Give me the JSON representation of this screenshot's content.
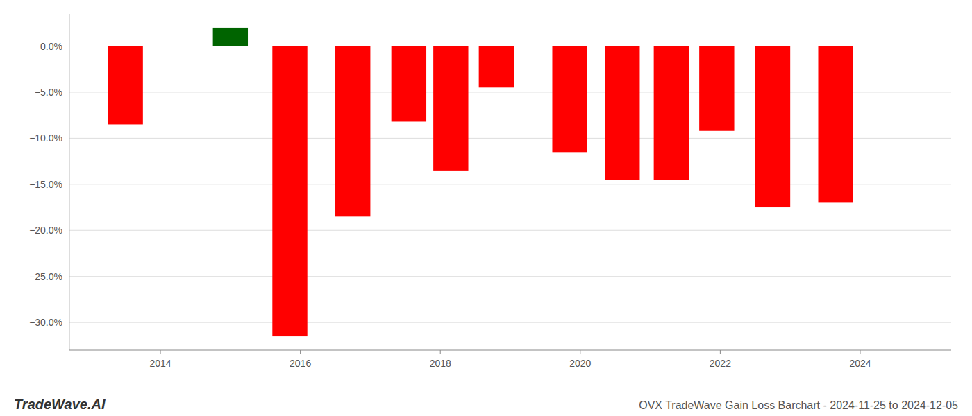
{
  "chart_data": {
    "type": "bar",
    "title": "OVX TradeWave Gain Loss Barchart - 2024-11-25 to 2024-12-05",
    "annotations": [
      "TradeWave.AI"
    ],
    "x": [
      2013.5,
      2015.0,
      2015.85,
      2016.75,
      2017.55,
      2018.15,
      2018.8,
      2019.85,
      2020.6,
      2021.3,
      2021.95,
      2022.75,
      2023.65
    ],
    "values": [
      -8.5,
      2.0,
      -31.5,
      -18.5,
      -8.2,
      -13.5,
      -4.5,
      -11.5,
      -14.5,
      -14.5,
      -9.2,
      -17.5,
      -17.0
    ],
    "colors": [
      "#ff0000",
      "#006400",
      "#ff0000",
      "#ff0000",
      "#ff0000",
      "#ff0000",
      "#ff0000",
      "#ff0000",
      "#ff0000",
      "#ff0000",
      "#ff0000",
      "#ff0000",
      "#ff0000"
    ],
    "xlim": [
      2012.7,
      2025.3
    ],
    "xticks": [
      2014,
      2016,
      2018,
      2020,
      2022,
      2024
    ],
    "ylim": [
      -33,
      3.5
    ],
    "yticks": [
      {
        "value": 0,
        "label": "0.0%"
      },
      {
        "value": -5,
        "label": "−5.0%"
      },
      {
        "value": -10,
        "label": "−10.0%"
      },
      {
        "value": -15,
        "label": "−15.0%"
      },
      {
        "value": -20,
        "label": "−20.0%"
      },
      {
        "value": -25,
        "label": "−25.0%"
      },
      {
        "value": -30,
        "label": "−30.0%"
      }
    ],
    "grid": true
  }
}
